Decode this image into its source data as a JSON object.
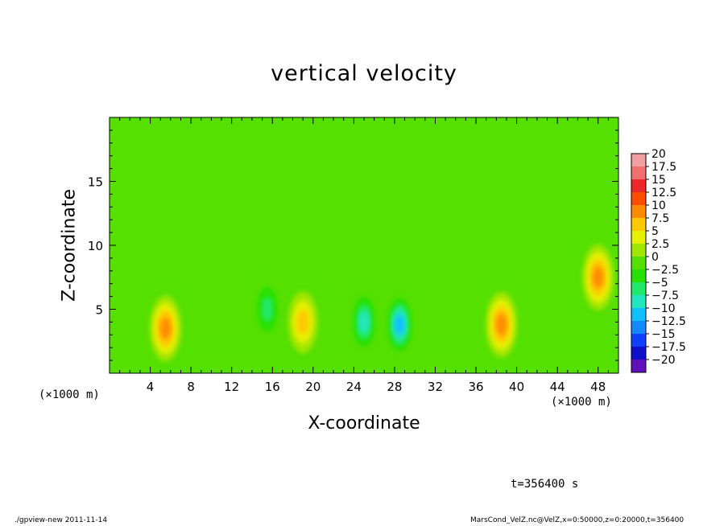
{
  "chart_data": {
    "type": "heatmap",
    "title": "vertical velocity",
    "xlabel": "X-coordinate",
    "ylabel": "Z-coordinate",
    "x_unit": "(×1000 m)",
    "x_unit_right": "(×1000 m)",
    "xlim": [
      0,
      50
    ],
    "ylim": [
      0,
      20
    ],
    "x_ticks": [
      4,
      8,
      12,
      16,
      20,
      24,
      28,
      32,
      36,
      40,
      44,
      48
    ],
    "y_ticks": [
      5,
      10,
      15
    ],
    "colorbar": {
      "levels": [
        20,
        17.5,
        15,
        12.5,
        10,
        7.5,
        5,
        2.5,
        0,
        -2.5,
        -5,
        -7.5,
        -10,
        -12.5,
        -15,
        -17.5,
        -20
      ],
      "level_labels": [
        "20",
        "17.5",
        "15",
        "12.5",
        "10",
        "7.5",
        "5",
        "2.5",
        "0",
        "−2.5",
        "−5",
        "−7.5",
        "−10",
        "−12.5",
        "−15",
        "−17.5",
        "−20"
      ],
      "colors": [
        "#f0a0a0",
        "#f07070",
        "#ee2828",
        "#ff4d00",
        "#ff8c00",
        "#ffc800",
        "#e6f000",
        "#a0e600",
        "#55e000",
        "#28e000",
        "#20e86a",
        "#20e6c0",
        "#10c0ff",
        "#1488ff",
        "#1040ff",
        "#1010c8",
        "#6010b8"
      ]
    },
    "features": [
      {
        "x": 5.5,
        "z": 3.5,
        "value": 9
      },
      {
        "x": 19.0,
        "z": 4.0,
        "value": 8
      },
      {
        "x": 38.5,
        "z": 3.8,
        "value": 9
      },
      {
        "x": 48.0,
        "z": 7.5,
        "value": 10
      },
      {
        "x": 15.5,
        "z": 5.0,
        "value": -6
      },
      {
        "x": 25.0,
        "z": 4.0,
        "value": -7
      },
      {
        "x": 28.5,
        "z": 3.8,
        "value": -9
      }
    ]
  },
  "time_label": "t=356400 s",
  "footer": {
    "left": "./gpview-new  2011-11-14",
    "right": "MarsCond_VelZ.nc@VelZ,x=0:50000,z=0:20000,t=356400"
  }
}
